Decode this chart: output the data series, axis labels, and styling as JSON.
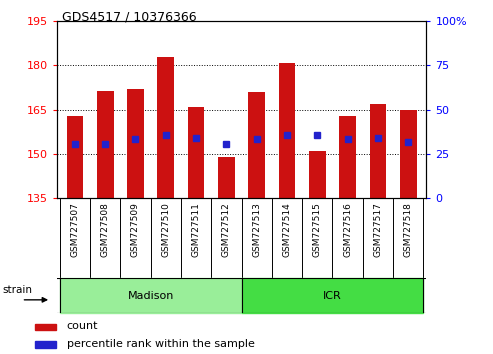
{
  "title": "GDS4517 / 10376366",
  "samples": [
    "GSM727507",
    "GSM727508",
    "GSM727509",
    "GSM727510",
    "GSM727511",
    "GSM727512",
    "GSM727513",
    "GSM727514",
    "GSM727515",
    "GSM727516",
    "GSM727517",
    "GSM727518"
  ],
  "bar_tops": [
    163.0,
    171.5,
    172.0,
    183.0,
    166.0,
    149.0,
    171.0,
    181.0,
    151.0,
    163.0,
    167.0,
    165.0
  ],
  "bar_base": 135,
  "blue_vals": [
    153.5,
    153.5,
    155.0,
    156.5,
    155.5,
    153.5,
    155.0,
    156.5,
    156.5,
    155.0,
    155.5,
    154.0
  ],
  "ylim_left": [
    135,
    195
  ],
  "ylim_right": [
    0,
    100
  ],
  "yticks_left": [
    135,
    150,
    165,
    180,
    195
  ],
  "yticks_right": [
    0,
    25,
    50,
    75,
    100
  ],
  "grid_vals": [
    150,
    165,
    180
  ],
  "bar_color": "#cc1111",
  "blue_color": "#2222cc",
  "bar_width": 0.55,
  "blue_size": 5,
  "madison_color": "#99ee99",
  "icr_color": "#44dd44",
  "strain_label": "strain",
  "legend_count": "count",
  "legend_percentile": "percentile rank within the sample",
  "tick_area_color": "#cccccc",
  "n_madison": 6,
  "n_icr": 6
}
